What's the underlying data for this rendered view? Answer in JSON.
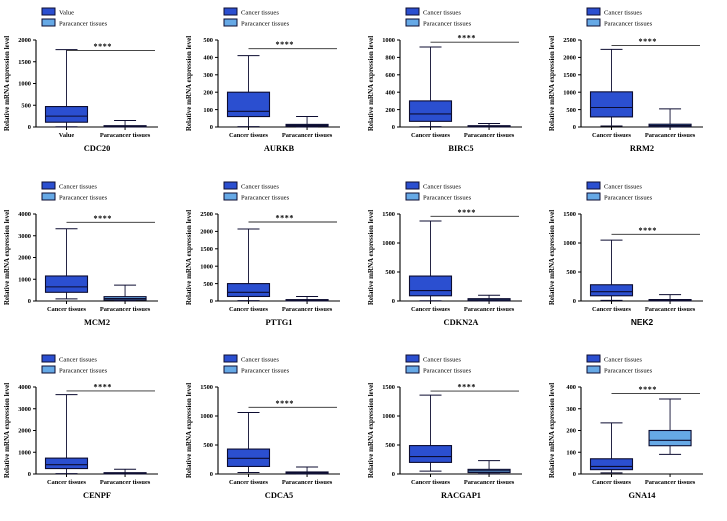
{
  "figure": {
    "ylabel": "Relative mRNA expression level",
    "significance_label": "****",
    "colors": {
      "cancer_fill": "#2b4fd0",
      "paracancer_fill": "#66a9e6",
      "box_border": "#0c0c30",
      "axis": "#000000",
      "sig_line": "#2b2b2b",
      "text": "#000000"
    }
  },
  "chart_data": [
    {
      "type": "box",
      "title": "CDC20",
      "title_font": "serif",
      "ylabel": "Relative mRNA expression level",
      "ylim": [
        0,
        2000
      ],
      "yticks": [
        0,
        500,
        1000,
        1500,
        2000
      ],
      "legend": [
        "Value",
        "Paracancer tissues"
      ],
      "categories": [
        "Value",
        "Paracancer tissues"
      ],
      "significance": "****",
      "sig_y": 1760,
      "series": [
        {
          "name": "Value",
          "min": 5,
          "q1": 110,
          "median": 250,
          "q3": 470,
          "max": 1780,
          "color": "#2b4fd0"
        },
        {
          "name": "Paracancer tissues",
          "min": 0,
          "q1": 3,
          "median": 12,
          "q3": 30,
          "max": 150,
          "color": "#66a9e6"
        }
      ]
    },
    {
      "type": "box",
      "title": "AURKB",
      "title_font": "serif",
      "ylabel": "Relative mRNA expression level",
      "ylim": [
        0,
        500
      ],
      "yticks": [
        0,
        100,
        200,
        300,
        400,
        500
      ],
      "legend": [
        "Cancer tissues",
        "Paracancer tissues"
      ],
      "categories": [
        "Cancer tissues",
        "Paracancer tissues"
      ],
      "significance": "****",
      "sig_y": 450,
      "series": [
        {
          "name": "Cancer tissues",
          "min": 2,
          "q1": 60,
          "median": 90,
          "q3": 200,
          "max": 410,
          "color": "#2b4fd0"
        },
        {
          "name": "Paracancer tissues",
          "min": 0,
          "q1": 3,
          "median": 8,
          "q3": 15,
          "max": 60,
          "color": "#66a9e6"
        }
      ]
    },
    {
      "type": "box",
      "title": "BIRC5",
      "title_font": "serif",
      "ylabel": "Relative mRNA expression level",
      "ylim": [
        0,
        1000
      ],
      "yticks": [
        0,
        200,
        400,
        600,
        800,
        1000
      ],
      "legend": [
        "Cancer tissues",
        "Paracancer tissues"
      ],
      "categories": [
        "Cancer tissues",
        "Paracancer tissues"
      ],
      "significance": "****",
      "sig_y": 975,
      "series": [
        {
          "name": "Cancer tissues",
          "min": 5,
          "q1": 65,
          "median": 150,
          "q3": 300,
          "max": 920,
          "color": "#2b4fd0"
        },
        {
          "name": "Paracancer tissues",
          "min": 0,
          "q1": 2,
          "median": 6,
          "q3": 15,
          "max": 40,
          "color": "#66a9e6"
        }
      ]
    },
    {
      "type": "box",
      "title": "RRM2",
      "title_font": "serif",
      "ylabel": "Relative mRNA expression level",
      "ylim": [
        0,
        2500
      ],
      "yticks": [
        0,
        500,
        1000,
        1500,
        2000,
        2500
      ],
      "legend": [
        "Cancer tissues",
        "Paracancer tissues"
      ],
      "categories": [
        "Cancer tissues",
        "Paracancer tissues"
      ],
      "significance": "****",
      "sig_y": 2340,
      "series": [
        {
          "name": "Cancer tissues",
          "min": 30,
          "q1": 290,
          "median": 560,
          "q3": 1010,
          "max": 2230,
          "color": "#2b4fd0"
        },
        {
          "name": "Paracancer tissues",
          "min": 0,
          "q1": 10,
          "median": 40,
          "q3": 80,
          "max": 520,
          "color": "#66a9e6"
        }
      ]
    },
    {
      "type": "box",
      "title": "MCM2",
      "title_font": "serif",
      "ylabel": "Relative mRNA expression level",
      "ylim": [
        0,
        4000
      ],
      "yticks": [
        0,
        1000,
        2000,
        3000,
        4000
      ],
      "legend": [
        "Cancer tissues",
        "Paracancer tissues"
      ],
      "categories": [
        "Cancer tissues",
        "Paracancer tissues"
      ],
      "significance": "****",
      "sig_y": 3620,
      "series": [
        {
          "name": "Cancer tissues",
          "min": 100,
          "q1": 400,
          "median": 650,
          "q3": 1150,
          "max": 3320,
          "color": "#2b4fd0"
        },
        {
          "name": "Paracancer tissues",
          "min": 10,
          "q1": 50,
          "median": 110,
          "q3": 200,
          "max": 730,
          "color": "#66a9e6"
        }
      ]
    },
    {
      "type": "box",
      "title": "PTTG1",
      "title_font": "serif",
      "ylabel": "Relative mRNA expression level",
      "ylim": [
        0,
        2500
      ],
      "yticks": [
        0,
        500,
        1000,
        1500,
        2000,
        2500
      ],
      "legend": [
        "Cancer tissues",
        "Paracancer tissues"
      ],
      "categories": [
        "Cancer tissues",
        "Paracancer tissues"
      ],
      "significance": "****",
      "sig_y": 2270,
      "series": [
        {
          "name": "Cancer tissues",
          "min": 10,
          "q1": 130,
          "median": 250,
          "q3": 500,
          "max": 2070,
          "color": "#2b4fd0"
        },
        {
          "name": "Paracancer tissues",
          "min": 0,
          "q1": 5,
          "median": 20,
          "q3": 40,
          "max": 130,
          "color": "#66a9e6"
        }
      ]
    },
    {
      "type": "box",
      "title": "CDKN2A",
      "title_font": "serif",
      "ylabel": "Relative mRNA expression level",
      "ylim": [
        0,
        1500
      ],
      "yticks": [
        0,
        500,
        1000,
        1500
      ],
      "legend": [
        "Cancer tissues",
        "Paracancer tissues"
      ],
      "categories": [
        "Cancer tissues",
        "Paracancer tissues"
      ],
      "significance": "****",
      "sig_y": 1460,
      "series": [
        {
          "name": "Cancer tissues",
          "min": 5,
          "q1": 90,
          "median": 180,
          "q3": 430,
          "max": 1380,
          "color": "#2b4fd0"
        },
        {
          "name": "Paracancer tissues",
          "min": 0,
          "q1": 5,
          "median": 20,
          "q3": 40,
          "max": 100,
          "color": "#66a9e6"
        }
      ]
    },
    {
      "type": "box",
      "title": "NEK2",
      "title_font": "sans",
      "ylabel": "Relative mRNA expression level",
      "ylim": [
        0,
        1500
      ],
      "yticks": [
        0,
        500,
        1000,
        1500
      ],
      "legend": [
        "Cancer tissues",
        "Paracancer tissues"
      ],
      "categories": [
        "Cancer tissues",
        "Paracancer tissues"
      ],
      "significance": "****",
      "sig_y": 1150,
      "series": [
        {
          "name": "Cancer tissues",
          "min": 10,
          "q1": 90,
          "median": 160,
          "q3": 280,
          "max": 1050,
          "color": "#2b4fd0"
        },
        {
          "name": "Paracancer tissues",
          "min": 0,
          "q1": 3,
          "median": 10,
          "q3": 25,
          "max": 110,
          "color": "#66a9e6"
        }
      ]
    },
    {
      "type": "box",
      "title": "CENPF",
      "title_font": "serif",
      "ylabel": "Relative mRNA expression level",
      "ylim": [
        0,
        4000
      ],
      "yticks": [
        0,
        1000,
        2000,
        3000,
        4000
      ],
      "legend": [
        "Cancer tissues",
        "Paracancer tissues"
      ],
      "categories": [
        "Cancer tissues",
        "Paracancer tissues"
      ],
      "significance": "****",
      "sig_y": 3820,
      "series": [
        {
          "name": "Cancer tissues",
          "min": 20,
          "q1": 250,
          "median": 430,
          "q3": 730,
          "max": 3650,
          "color": "#2b4fd0"
        },
        {
          "name": "Paracancer tissues",
          "min": 0,
          "q1": 10,
          "median": 30,
          "q3": 60,
          "max": 220,
          "color": "#66a9e6"
        }
      ]
    },
    {
      "type": "box",
      "title": "CDCA5",
      "title_font": "serif",
      "ylabel": "Relative mRNA expression level",
      "ylim": [
        0,
        1500
      ],
      "yticks": [
        0,
        500,
        1000,
        1500
      ],
      "legend": [
        "Cancer tissues",
        "Paracancer tissues"
      ],
      "categories": [
        "Cancer tissues",
        "Paracancer tissues"
      ],
      "significance": "****",
      "sig_y": 1150,
      "series": [
        {
          "name": "Cancer tissues",
          "min": 25,
          "q1": 130,
          "median": 270,
          "q3": 430,
          "max": 1060,
          "color": "#2b4fd0"
        },
        {
          "name": "Paracancer tissues",
          "min": 0,
          "q1": 5,
          "median": 20,
          "q3": 35,
          "max": 120,
          "color": "#66a9e6"
        }
      ]
    },
    {
      "type": "box",
      "title": "RACGAP1",
      "title_font": "serif",
      "ylabel": "Relative mRNA expression level",
      "ylim": [
        0,
        1500
      ],
      "yticks": [
        0,
        500,
        1000,
        1500
      ],
      "legend": [
        "Cancer tissues",
        "Paracancer tissues"
      ],
      "categories": [
        "Cancer tissues",
        "Paracancer tissues"
      ],
      "significance": "****",
      "sig_y": 1430,
      "series": [
        {
          "name": "Cancer tissues",
          "min": 50,
          "q1": 200,
          "median": 300,
          "q3": 490,
          "max": 1360,
          "color": "#2b4fd0"
        },
        {
          "name": "Paracancer tissues",
          "min": 5,
          "q1": 25,
          "median": 55,
          "q3": 80,
          "max": 230,
          "color": "#66a9e6"
        }
      ]
    },
    {
      "type": "box",
      "title": "GNA14",
      "title_font": "serif",
      "ylabel": "Relative mRNA expression level",
      "ylim": [
        0,
        400
      ],
      "yticks": [
        0,
        100,
        200,
        300,
        400
      ],
      "legend": [
        "Cancer tissues",
        "Paracancer tissues"
      ],
      "categories": [
        "Cancer tissues",
        "Paracancer tissues"
      ],
      "significance": "****",
      "sig_y": 370,
      "series": [
        {
          "name": "Cancer tissues",
          "min": 5,
          "q1": 20,
          "median": 35,
          "q3": 70,
          "max": 235,
          "color": "#2b4fd0"
        },
        {
          "name": "Paracancer tissues",
          "min": 90,
          "q1": 130,
          "median": 155,
          "q3": 200,
          "max": 345,
          "color": "#66a9e6"
        }
      ]
    }
  ]
}
